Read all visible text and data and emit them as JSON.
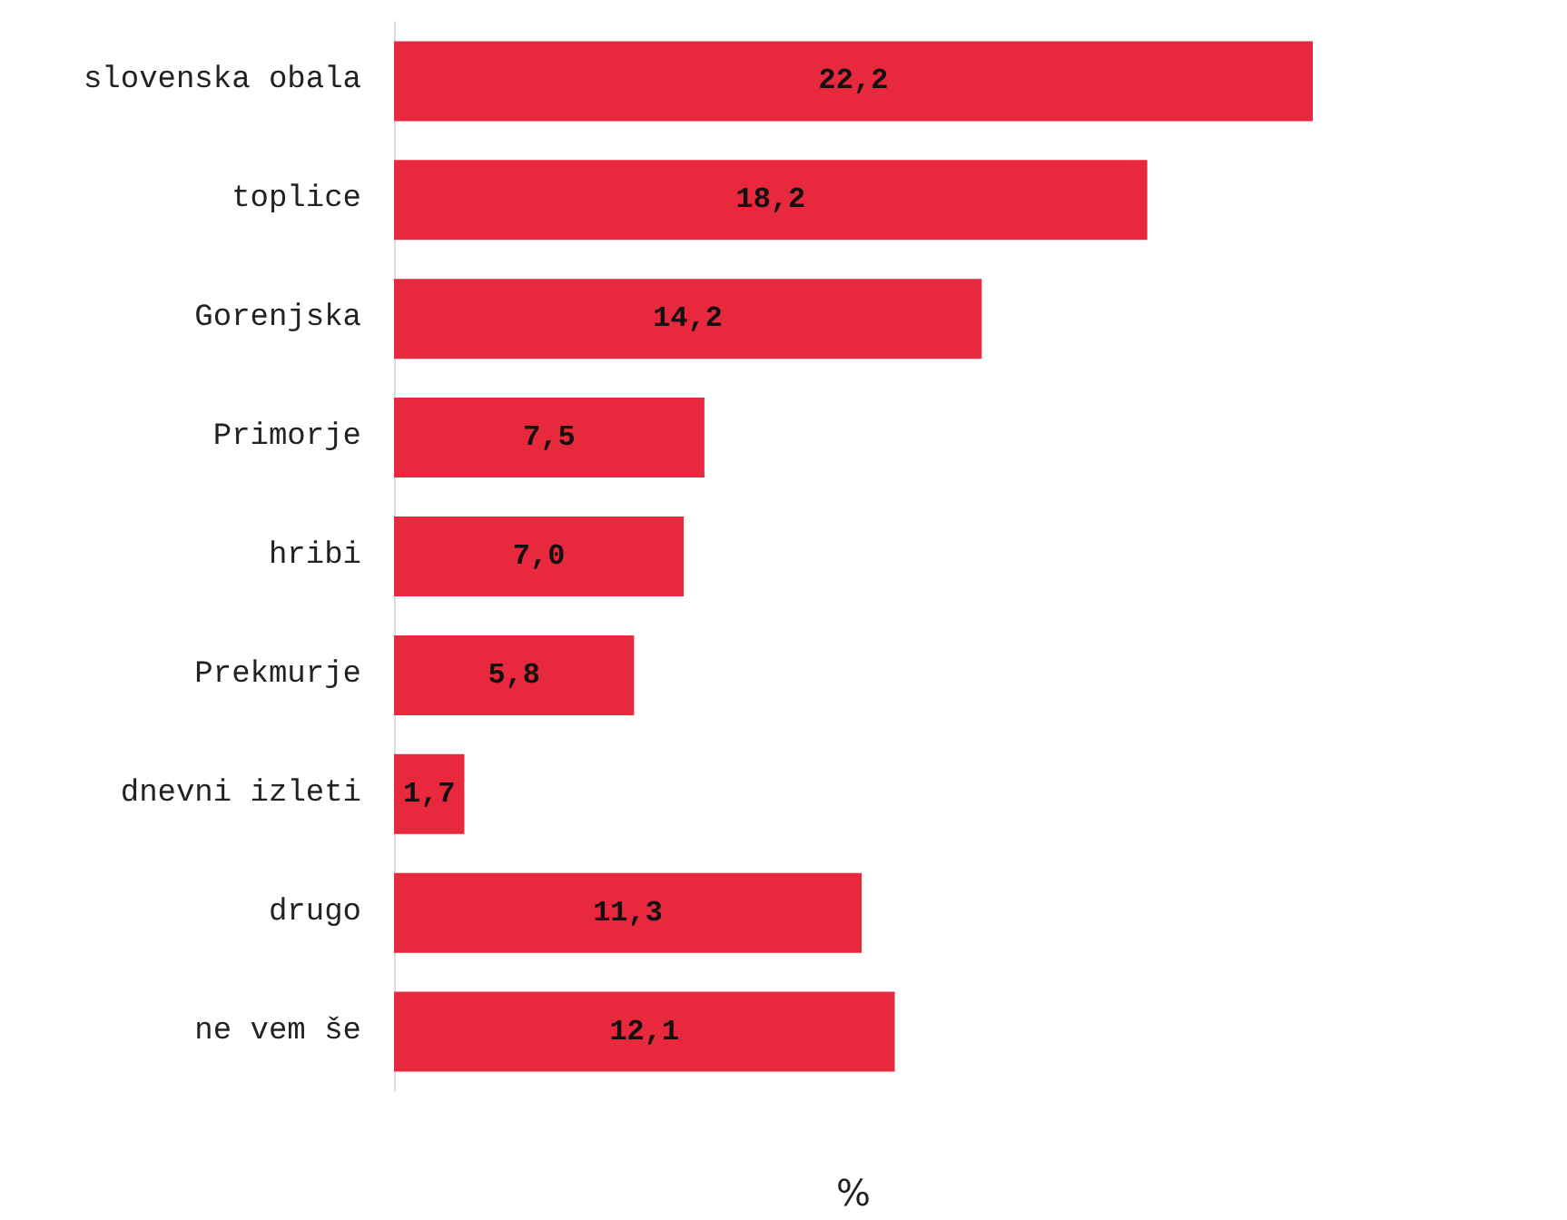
{
  "chart_data": {
    "type": "bar",
    "orientation": "horizontal",
    "xlabel": "%",
    "categories": [
      "slovenska obala",
      "toplice",
      "Gorenjska",
      "Primorje",
      "hribi",
      "Prekmurje",
      "dnevni izleti",
      "drugo",
      "ne vem še"
    ],
    "values": [
      22.2,
      18.2,
      14.2,
      7.5,
      7.0,
      5.8,
      1.7,
      11.3,
      12.1
    ],
    "value_labels": [
      "22,2",
      "18,2",
      "14,2",
      "7,5",
      "7,0",
      "5,8",
      "1,7",
      "11,3",
      "12,1"
    ],
    "color": "#e8283c"
  }
}
